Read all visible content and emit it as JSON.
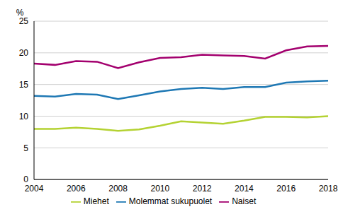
{
  "chart_data": {
    "type": "line",
    "y_label": "%",
    "x": [
      2004,
      2005,
      2006,
      2007,
      2008,
      2009,
      2010,
      2011,
      2012,
      2013,
      2014,
      2015,
      2016,
      2017,
      2018
    ],
    "xlim": [
      2004,
      2018
    ],
    "xticks": [
      2004,
      2006,
      2008,
      2010,
      2012,
      2014,
      2016,
      2018
    ],
    "ylim": [
      0,
      25
    ],
    "yticks": [
      0,
      5,
      10,
      15,
      20,
      25
    ],
    "grid": true,
    "legend": "bottom",
    "series": [
      {
        "name": "Molemmat sukupuolet",
        "color": "#1e78b4",
        "values": [
          13.2,
          13.1,
          13.5,
          13.4,
          12.7,
          13.3,
          13.9,
          14.3,
          14.5,
          14.3,
          14.6,
          14.6,
          15.3,
          15.5,
          15.6
        ]
      },
      {
        "name": "Miehet",
        "color": "#b4d232",
        "values": [
          8.0,
          8.0,
          8.2,
          8.0,
          7.7,
          7.9,
          8.5,
          9.2,
          9.0,
          8.8,
          9.3,
          9.9,
          9.9,
          9.8,
          10.0
        ]
      },
      {
        "name": "Naiset",
        "color": "#a3006e",
        "values": [
          18.3,
          18.1,
          18.7,
          18.6,
          17.6,
          18.5,
          19.2,
          19.3,
          19.7,
          19.6,
          19.5,
          19.1,
          20.4,
          21.0,
          21.1
        ]
      }
    ]
  }
}
